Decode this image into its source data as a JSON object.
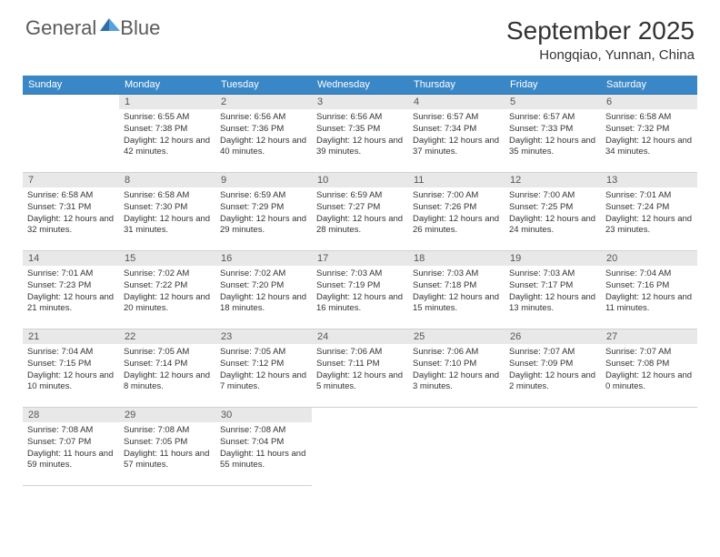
{
  "logo": {
    "text1": "General",
    "text2": "Blue"
  },
  "title": "September 2025",
  "location": "Hongqiao, Yunnan, China",
  "colors": {
    "header_bg": "#3a87c8",
    "header_border": "#2d6fa5",
    "daynum_bg": "#e8e8e8",
    "logo_gray": "#5a5a5a",
    "logo_blue": "#2d6fa5"
  },
  "weekdays": [
    "Sunday",
    "Monday",
    "Tuesday",
    "Wednesday",
    "Thursday",
    "Friday",
    "Saturday"
  ],
  "weeks": [
    [
      {
        "n": "",
        "sr": "",
        "ss": "",
        "dl": ""
      },
      {
        "n": "1",
        "sr": "6:55 AM",
        "ss": "7:38 PM",
        "dl": "12 hours and 42 minutes."
      },
      {
        "n": "2",
        "sr": "6:56 AM",
        "ss": "7:36 PM",
        "dl": "12 hours and 40 minutes."
      },
      {
        "n": "3",
        "sr": "6:56 AM",
        "ss": "7:35 PM",
        "dl": "12 hours and 39 minutes."
      },
      {
        "n": "4",
        "sr": "6:57 AM",
        "ss": "7:34 PM",
        "dl": "12 hours and 37 minutes."
      },
      {
        "n": "5",
        "sr": "6:57 AM",
        "ss": "7:33 PM",
        "dl": "12 hours and 35 minutes."
      },
      {
        "n": "6",
        "sr": "6:58 AM",
        "ss": "7:32 PM",
        "dl": "12 hours and 34 minutes."
      }
    ],
    [
      {
        "n": "7",
        "sr": "6:58 AM",
        "ss": "7:31 PM",
        "dl": "12 hours and 32 minutes."
      },
      {
        "n": "8",
        "sr": "6:58 AM",
        "ss": "7:30 PM",
        "dl": "12 hours and 31 minutes."
      },
      {
        "n": "9",
        "sr": "6:59 AM",
        "ss": "7:29 PM",
        "dl": "12 hours and 29 minutes."
      },
      {
        "n": "10",
        "sr": "6:59 AM",
        "ss": "7:27 PM",
        "dl": "12 hours and 28 minutes."
      },
      {
        "n": "11",
        "sr": "7:00 AM",
        "ss": "7:26 PM",
        "dl": "12 hours and 26 minutes."
      },
      {
        "n": "12",
        "sr": "7:00 AM",
        "ss": "7:25 PM",
        "dl": "12 hours and 24 minutes."
      },
      {
        "n": "13",
        "sr": "7:01 AM",
        "ss": "7:24 PM",
        "dl": "12 hours and 23 minutes."
      }
    ],
    [
      {
        "n": "14",
        "sr": "7:01 AM",
        "ss": "7:23 PM",
        "dl": "12 hours and 21 minutes."
      },
      {
        "n": "15",
        "sr": "7:02 AM",
        "ss": "7:22 PM",
        "dl": "12 hours and 20 minutes."
      },
      {
        "n": "16",
        "sr": "7:02 AM",
        "ss": "7:20 PM",
        "dl": "12 hours and 18 minutes."
      },
      {
        "n": "17",
        "sr": "7:03 AM",
        "ss": "7:19 PM",
        "dl": "12 hours and 16 minutes."
      },
      {
        "n": "18",
        "sr": "7:03 AM",
        "ss": "7:18 PM",
        "dl": "12 hours and 15 minutes."
      },
      {
        "n": "19",
        "sr": "7:03 AM",
        "ss": "7:17 PM",
        "dl": "12 hours and 13 minutes."
      },
      {
        "n": "20",
        "sr": "7:04 AM",
        "ss": "7:16 PM",
        "dl": "12 hours and 11 minutes."
      }
    ],
    [
      {
        "n": "21",
        "sr": "7:04 AM",
        "ss": "7:15 PM",
        "dl": "12 hours and 10 minutes."
      },
      {
        "n": "22",
        "sr": "7:05 AM",
        "ss": "7:14 PM",
        "dl": "12 hours and 8 minutes."
      },
      {
        "n": "23",
        "sr": "7:05 AM",
        "ss": "7:12 PM",
        "dl": "12 hours and 7 minutes."
      },
      {
        "n": "24",
        "sr": "7:06 AM",
        "ss": "7:11 PM",
        "dl": "12 hours and 5 minutes."
      },
      {
        "n": "25",
        "sr": "7:06 AM",
        "ss": "7:10 PM",
        "dl": "12 hours and 3 minutes."
      },
      {
        "n": "26",
        "sr": "7:07 AM",
        "ss": "7:09 PM",
        "dl": "12 hours and 2 minutes."
      },
      {
        "n": "27",
        "sr": "7:07 AM",
        "ss": "7:08 PM",
        "dl": "12 hours and 0 minutes."
      }
    ],
    [
      {
        "n": "28",
        "sr": "7:08 AM",
        "ss": "7:07 PM",
        "dl": "11 hours and 59 minutes."
      },
      {
        "n": "29",
        "sr": "7:08 AM",
        "ss": "7:05 PM",
        "dl": "11 hours and 57 minutes."
      },
      {
        "n": "30",
        "sr": "7:08 AM",
        "ss": "7:04 PM",
        "dl": "11 hours and 55 minutes."
      },
      {
        "n": "",
        "sr": "",
        "ss": "",
        "dl": ""
      },
      {
        "n": "",
        "sr": "",
        "ss": "",
        "dl": ""
      },
      {
        "n": "",
        "sr": "",
        "ss": "",
        "dl": ""
      },
      {
        "n": "",
        "sr": "",
        "ss": "",
        "dl": ""
      }
    ]
  ]
}
